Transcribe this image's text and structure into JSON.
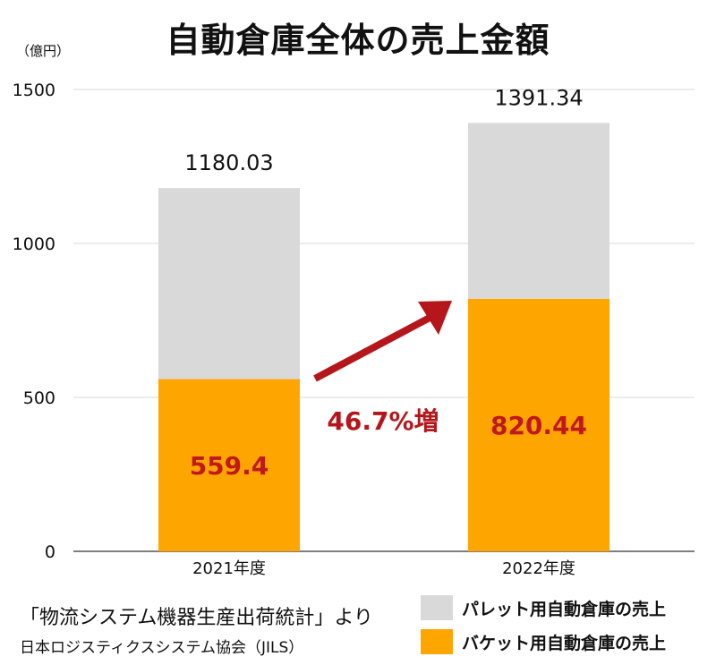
{
  "chart_data": {
    "type": "bar",
    "stacked": true,
    "title": "自動倉庫全体の売上金額",
    "unit_label": "（億円）",
    "categories": [
      "2021年度",
      "2022年度"
    ],
    "series": [
      {
        "name": "バケット用自動倉庫の売上",
        "values": [
          559.4,
          820.44
        ],
        "color": "#ffa500",
        "value_labels": [
          "559.4",
          "820.44"
        ]
      },
      {
        "name": "パレット用自動倉庫の売上",
        "values": [
          620.63,
          570.9
        ],
        "color": "#d9d9d9"
      }
    ],
    "totals": [
      1180.03,
      1391.34
    ],
    "total_labels": [
      "1180.03",
      "1391.34"
    ],
    "ylim": [
      0,
      1500
    ],
    "y_ticks": [
      0,
      500,
      1000,
      1500
    ],
    "y_tick_labels": [
      "0",
      "500",
      "1000",
      "1500"
    ],
    "grid": true,
    "legend_position": "bottom-right",
    "annotation": {
      "text": "46.7%増",
      "arrow_color": "#b5161b"
    }
  },
  "source": {
    "line1": "「物流システム機器生産出荷統計」より",
    "line2": "日本ロジスティクスシステム協会（JILS）"
  }
}
